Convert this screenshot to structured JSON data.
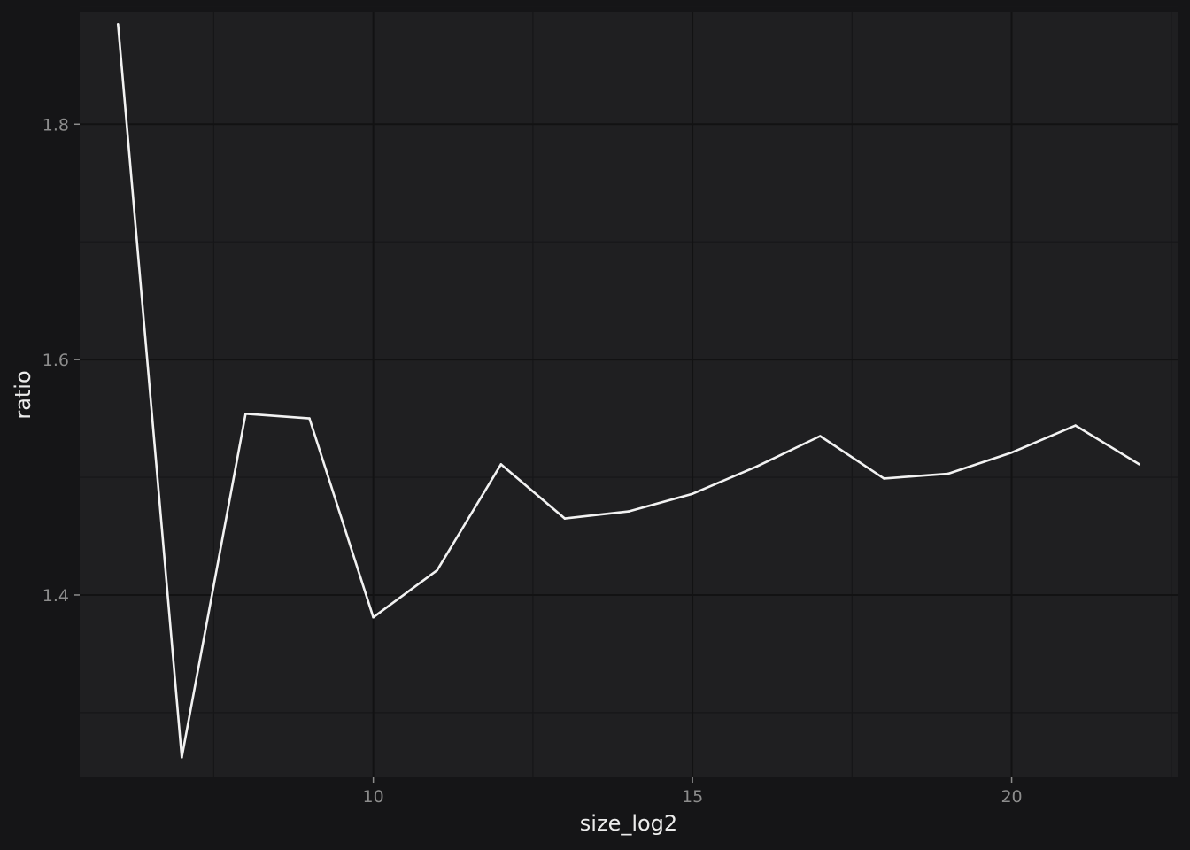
{
  "chart_data": {
    "type": "line",
    "title": "",
    "xlabel": "size_log2",
    "ylabel": "ratio",
    "xlim": [
      5.4,
      22.6
    ],
    "ylim": [
      1.245,
      1.895
    ],
    "x_ticks": [
      10,
      15,
      20
    ],
    "x_minor_ticks": [
      7.5,
      12.5,
      17.5,
      22.5
    ],
    "y_ticks": [
      1.4,
      1.6,
      1.8
    ],
    "y_minor_ticks": [
      1.3,
      1.5,
      1.7,
      1.9
    ],
    "grid": true,
    "legend": "none",
    "series": [
      {
        "x": [
          6,
          7,
          8,
          9,
          10,
          11,
          12,
          13,
          14,
          15,
          16,
          17,
          18,
          19,
          20,
          21,
          22
        ],
        "y": [
          1.885,
          1.262,
          1.554,
          1.55,
          1.381,
          1.421,
          1.511,
          1.465,
          1.471,
          1.486,
          1.509,
          1.535,
          1.499,
          1.503,
          1.521,
          1.544,
          1.511
        ],
        "color": "#f2f2f2"
      }
    ],
    "colors": {
      "background": "#151517",
      "panel": "#1f1f21",
      "line": "#f2f2f2"
    }
  }
}
